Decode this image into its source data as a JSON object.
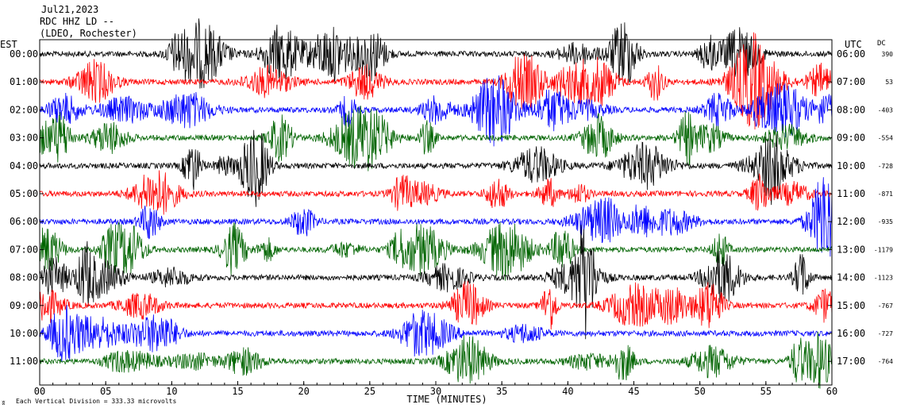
{
  "header": {
    "date": "Jul21,2023",
    "station": "RDC HHZ LD --",
    "network": "(LDEO, Rochester)"
  },
  "labels": {
    "left_zone": "EST",
    "right_zone": "UTC",
    "dc": "DC",
    "scale_note": "Each Vertical Division = 333.33 microvolts",
    "corner_glyph": "ʬ"
  },
  "chart_data": {
    "type": "line",
    "xlabel": "TIME (MINUTES)",
    "xlim": [
      0,
      60
    ],
    "x_ticks": [
      "00",
      "05",
      "10",
      "15",
      "20",
      "25",
      "30",
      "35",
      "40",
      "45",
      "50",
      "55",
      "60"
    ],
    "grid": true,
    "trace_colors": [
      "#000000",
      "#ff0000",
      "#0000ff",
      "#006400"
    ],
    "rows": [
      {
        "est": "00:00",
        "utc": "06:00",
        "dc": "390",
        "color": "#000000"
      },
      {
        "est": "01:00",
        "utc": "07:00",
        "dc": "53",
        "color": "#ff0000"
      },
      {
        "est": "02:00",
        "utc": "08:00",
        "dc": "-403",
        "color": "#0000ff"
      },
      {
        "est": "03:00",
        "utc": "09:00",
        "dc": "-554",
        "color": "#006400"
      },
      {
        "est": "04:00",
        "utc": "10:00",
        "dc": "-728",
        "color": "#000000"
      },
      {
        "est": "05:00",
        "utc": "11:00",
        "dc": "-871",
        "color": "#ff0000"
      },
      {
        "est": "06:00",
        "utc": "12:00",
        "dc": "-935",
        "color": "#0000ff"
      },
      {
        "est": "07:00",
        "utc": "13:00",
        "dc": "-1179",
        "color": "#006400"
      },
      {
        "est": "08:00",
        "utc": "14:00",
        "dc": "-1123",
        "color": "#000000"
      },
      {
        "est": "09:00",
        "utc": "15:00",
        "dc": "-767",
        "color": "#ff0000"
      },
      {
        "est": "10:00",
        "utc": "16:00",
        "dc": "-727",
        "color": "#0000ff"
      },
      {
        "est": "11:00",
        "utc": "17:00",
        "dc": "-764",
        "color": "#006400"
      }
    ]
  }
}
